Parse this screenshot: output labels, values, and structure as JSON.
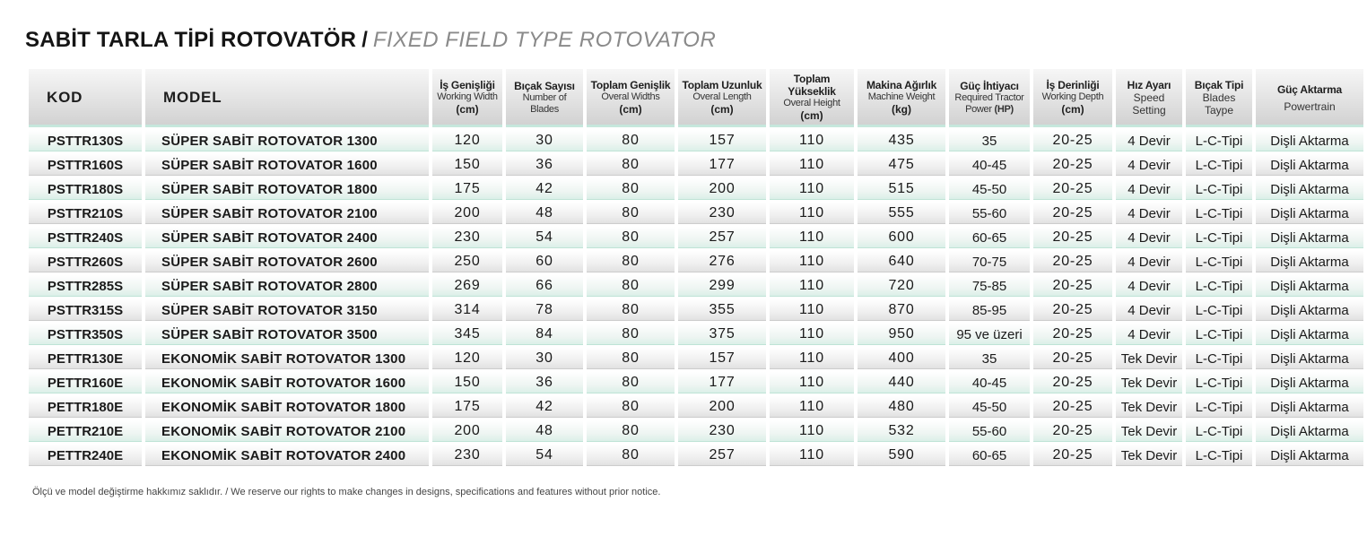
{
  "title": {
    "turkish": "SABİT TARLA TİPİ ROTOVATÖR",
    "separator": "/",
    "english": "FIXED FIELD TYPE ROTOVATOR"
  },
  "headers": {
    "kod": "KOD",
    "model": "MODEL",
    "working_width": {
      "tr": "İş Genişliği",
      "en": "Working Width",
      "unit": "(cm)"
    },
    "blades": {
      "tr": "Bıçak Sayısı",
      "en1": "Number of",
      "en2": "Blades"
    },
    "overal_width": {
      "tr": "Toplam Genişlik",
      "en": "Overal Widths",
      "unit": "(cm)"
    },
    "overal_length": {
      "tr": "Toplam Uzunluk",
      "en": "Overal Length",
      "unit": "(cm)"
    },
    "overal_height": {
      "tr": "Toplam Yükseklik",
      "en": "Overal Height",
      "unit": "(cm)"
    },
    "machine_weight": {
      "tr": "Makina Ağırlık",
      "en": "Machine Weight",
      "unit": "(kg)"
    },
    "power": {
      "tr": "Güç İhtiyacı",
      "en1": "Required Tractor",
      "en2": "Power",
      "unit": "(HP)"
    },
    "working_depth": {
      "tr": "İş Derinliği",
      "en": "Working Depth",
      "unit": "(cm)"
    },
    "speed": {
      "tr": "Hız Ayarı",
      "en1": "Speed",
      "en2": "Setting"
    },
    "blade_type": {
      "tr": "Bıçak Tipi",
      "en1": "Blades",
      "en2": "Taype"
    },
    "powertrain": {
      "tr": "Güç Aktarma",
      "en": "Powertrain"
    }
  },
  "rows": [
    [
      "PSTTR130S",
      "SÜPER SABİT ROTOVATOR  1300",
      "120",
      "30",
      "80",
      "157",
      "110",
      "435",
      "35",
      "20-25",
      "4 Devir",
      "L-C-Tipi",
      "Dişli Aktarma"
    ],
    [
      "PSTTR160S",
      "SÜPER SABİT ROTOVATOR  1600",
      "150",
      "36",
      "80",
      "177",
      "110",
      "475",
      "40-45",
      "20-25",
      "4 Devir",
      "L-C-Tipi",
      "Dişli Aktarma"
    ],
    [
      "PSTTR180S",
      "SÜPER SABİT ROTOVATOR  1800",
      "175",
      "42",
      "80",
      "200",
      "110",
      "515",
      "45-50",
      "20-25",
      "4 Devir",
      "L-C-Tipi",
      "Dişli Aktarma"
    ],
    [
      "PSTTR210S",
      "SÜPER SABİT ROTOVATOR  2100",
      "200",
      "48",
      "80",
      "230",
      "110",
      "555",
      "55-60",
      "20-25",
      "4 Devir",
      "L-C-Tipi",
      "Dişli Aktarma"
    ],
    [
      "PSTTR240S",
      "SÜPER SABİT ROTOVATOR  2400",
      "230",
      "54",
      "80",
      "257",
      "110",
      "600",
      "60-65",
      "20-25",
      "4 Devir",
      "L-C-Tipi",
      "Dişli Aktarma"
    ],
    [
      "PSTTR260S",
      "SÜPER SABİT ROTOVATOR  2600",
      "250",
      "60",
      "80",
      "276",
      "110",
      "640",
      "70-75",
      "20-25",
      "4 Devir",
      "L-C-Tipi",
      "Dişli Aktarma"
    ],
    [
      "PSTTR285S",
      "SÜPER SABİT ROTOVATOR  2800",
      "269",
      "66",
      "80",
      "299",
      "110",
      "720",
      "75-85",
      "20-25",
      "4 Devir",
      "L-C-Tipi",
      "Dişli Aktarma"
    ],
    [
      "PSTTR315S",
      "SÜPER SABİT ROTOVATOR  3150",
      "314",
      "78",
      "80",
      "355",
      "110",
      "870",
      "85-95",
      "20-25",
      "4 Devir",
      "L-C-Tipi",
      "Dişli Aktarma"
    ],
    [
      "PSTTR350S",
      "SÜPER SABİT ROTOVATOR  3500",
      "345",
      "84",
      "80",
      "375",
      "110",
      "950",
      "95 ve üzeri",
      "20-25",
      "4 Devir",
      "L-C-Tipi",
      "Dişli Aktarma"
    ],
    [
      "PETTR130E",
      "EKONOMİK SABİT ROTOVATOR  1300",
      "120",
      "30",
      "80",
      "157",
      "110",
      "400",
      "35",
      "20-25",
      "Tek Devir",
      "L-C-Tipi",
      "Dişli Aktarma"
    ],
    [
      "PETTR160E",
      "EKONOMİK SABİT ROTOVATOR  1600",
      "150",
      "36",
      "80",
      "177",
      "110",
      "440",
      "40-45",
      "20-25",
      "Tek Devir",
      "L-C-Tipi",
      "Dişli Aktarma"
    ],
    [
      "PETTR180E",
      "EKONOMİK SABİT ROTOVATOR  1800",
      "175",
      "42",
      "80",
      "200",
      "110",
      "480",
      "45-50",
      "20-25",
      "Tek Devir",
      "L-C-Tipi",
      "Dişli Aktarma"
    ],
    [
      "PETTR210E",
      "EKONOMİK SABİT ROTOVATOR  2100",
      "200",
      "48",
      "80",
      "230",
      "110",
      "532",
      "55-60",
      "20-25",
      "Tek Devir",
      "L-C-Tipi",
      "Dişli Aktarma"
    ],
    [
      "PETTR240E",
      "EKONOMİK SABİT ROTOVATOR  2400",
      "230",
      "54",
      "80",
      "257",
      "110",
      "590",
      "60-65",
      "20-25",
      "Tek Devir",
      "L-C-Tipi",
      "Dişli Aktarma"
    ]
  ],
  "footnote": "Ölçü ve model değiştirme hakkımız saklıdır. / We reserve our rights to make changes in designs, specifications and features without prior notice."
}
